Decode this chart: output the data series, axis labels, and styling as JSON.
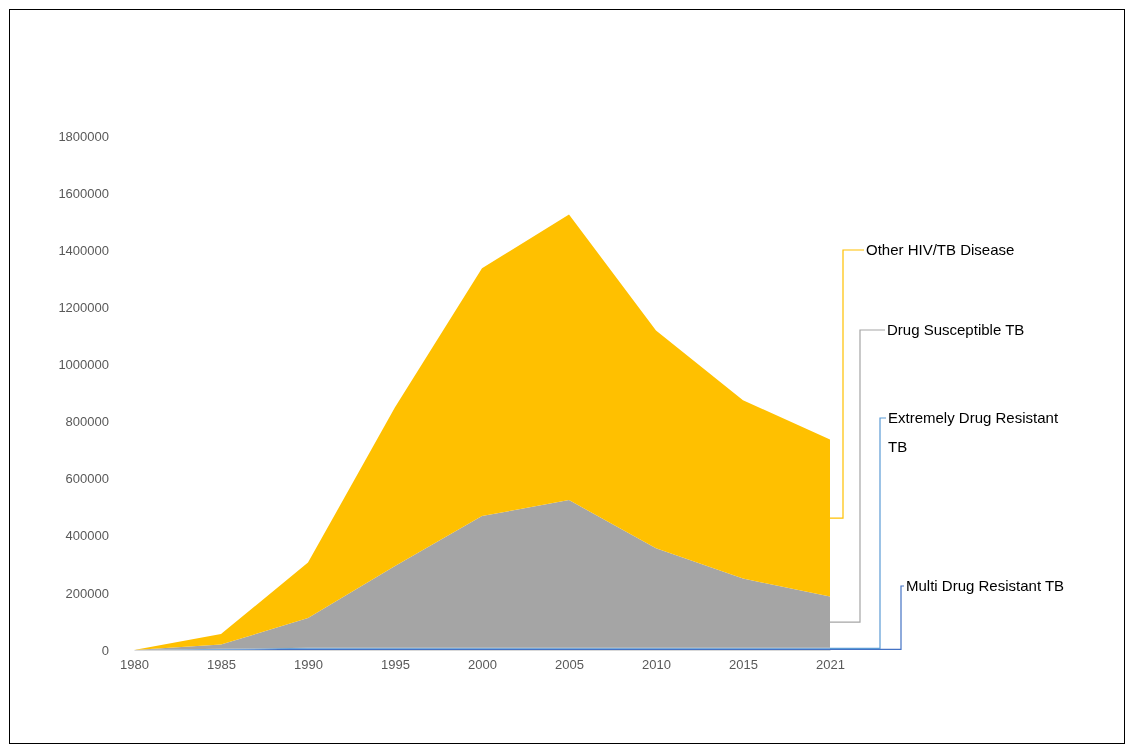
{
  "chart_data": {
    "type": "area",
    "stacked": true,
    "categories": [
      "1980",
      "1985",
      "1990",
      "1995",
      "2000",
      "2005",
      "2010",
      "2015",
      "2021"
    ],
    "ylim": [
      0,
      1800000
    ],
    "yticks": [
      0,
      200000,
      400000,
      600000,
      800000,
      1000000,
      1200000,
      1400000,
      1600000,
      1800000
    ],
    "grid": false,
    "series": [
      {
        "name": "Multi Drug Resistant TB",
        "color": "#4472c4",
        "values": [
          0,
          2000,
          4000,
          4000,
          4000,
          4000,
          4000,
          4000,
          4000
        ]
      },
      {
        "name": "Extremely Drug Resistant TB",
        "color": "#5b9bd5",
        "values": [
          0,
          2000,
          4000,
          4000,
          4000,
          4000,
          4000,
          4000,
          4000
        ]
      },
      {
        "name": "Drug Susceptible TB",
        "color": "#a5a5a5",
        "values": [
          0,
          15000,
          104000,
          286000,
          461000,
          517000,
          348000,
          242000,
          179000
        ]
      },
      {
        "name": "Other HIV/TB Disease",
        "color": "#ffc000",
        "values": [
          0,
          37000,
          194000,
          556000,
          868000,
          1000000,
          763000,
          625000,
          550000
        ]
      }
    ]
  }
}
